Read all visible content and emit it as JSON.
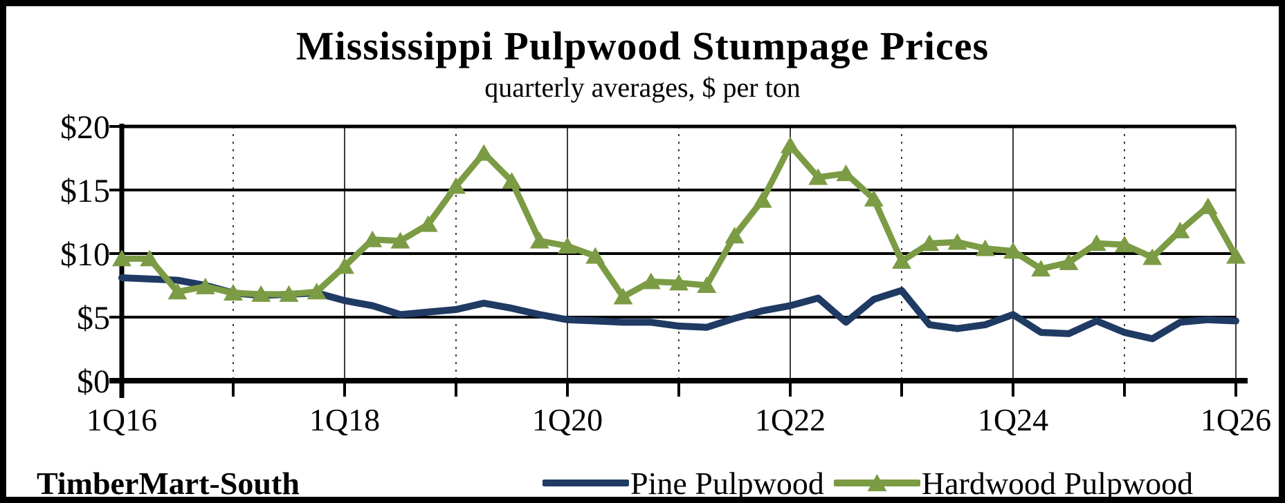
{
  "chart_data": {
    "type": "line",
    "title": "Mississippi Pulpwood Stumpage Prices",
    "subtitle": "quarterly averages, $ per ton",
    "ylim": [
      0,
      20
    ],
    "grid": {
      "horizontal_values": [
        5,
        10,
        15,
        20
      ],
      "vertical_solid_quarter_indices": [
        8,
        16,
        24,
        32,
        40
      ],
      "vertical_dashed_quarter_indices": [
        4,
        12,
        20,
        28,
        36
      ]
    },
    "y_ticks": [
      {
        "value": 0,
        "label": "$0"
      },
      {
        "value": 5,
        "label": "$5"
      },
      {
        "value": 10,
        "label": "$10"
      },
      {
        "value": 15,
        "label": "$15"
      },
      {
        "value": 20,
        "label": "$20"
      }
    ],
    "x_major_ticks": [
      {
        "index": 0,
        "label": "1Q16"
      },
      {
        "index": 8,
        "label": "1Q18"
      },
      {
        "index": 16,
        "label": "1Q20"
      },
      {
        "index": 24,
        "label": "1Q22"
      },
      {
        "index": 32,
        "label": "1Q24"
      },
      {
        "index": 40,
        "label": "1Q26"
      }
    ],
    "x_minor_tick_every_quarters": 4,
    "categories": [
      "1Q16",
      "2Q16",
      "3Q16",
      "4Q16",
      "1Q17",
      "2Q17",
      "3Q17",
      "4Q17",
      "1Q18",
      "2Q18",
      "3Q18",
      "4Q18",
      "1Q19",
      "2Q19",
      "3Q19",
      "4Q19",
      "1Q20",
      "2Q20",
      "3Q20",
      "4Q20",
      "1Q21",
      "2Q21",
      "3Q21",
      "4Q21",
      "1Q22",
      "2Q22",
      "3Q22",
      "4Q22",
      "1Q23",
      "2Q23",
      "3Q23",
      "4Q23",
      "1Q24",
      "2Q24",
      "3Q24",
      "4Q24",
      "1Q25",
      "2Q25",
      "3Q25",
      "4Q25",
      "1Q26"
    ],
    "series": [
      {
        "name": "Pine Pulpwood",
        "color": "#1f3a63",
        "marker": "none",
        "values": [
          8.1,
          8.0,
          7.9,
          7.5,
          6.9,
          6.7,
          6.8,
          6.9,
          6.3,
          5.9,
          5.2,
          5.4,
          5.6,
          6.1,
          5.7,
          5.2,
          4.8,
          4.7,
          4.6,
          4.6,
          4.3,
          4.2,
          4.9,
          5.5,
          5.9,
          6.5,
          4.6,
          6.4,
          7.1,
          4.4,
          4.1,
          4.4,
          5.2,
          3.8,
          3.7,
          4.7,
          3.8,
          3.3,
          4.6,
          4.8,
          4.7
        ]
      },
      {
        "name": "Hardwood Pulpwood",
        "color": "#7b9b44",
        "marker": "triangle-up",
        "values": [
          9.6,
          9.6,
          7.0,
          7.4,
          6.9,
          6.8,
          6.8,
          7.0,
          9.0,
          11.1,
          11.0,
          12.3,
          15.3,
          17.9,
          15.7,
          11.0,
          10.6,
          9.8,
          6.6,
          7.8,
          7.7,
          7.5,
          11.4,
          14.2,
          18.5,
          16.0,
          16.3,
          14.3,
          9.4,
          10.8,
          10.9,
          10.4,
          10.2,
          8.8,
          9.3,
          10.8,
          10.7,
          9.7,
          11.8,
          13.7,
          9.8
        ]
      }
    ],
    "legend_position": "bottom",
    "axis_color": "#000000",
    "gridline_color": "#000000",
    "vertical_gridline_color": "#3a3a3a"
  },
  "footer": {
    "source_label": "TimberMart-South"
  }
}
